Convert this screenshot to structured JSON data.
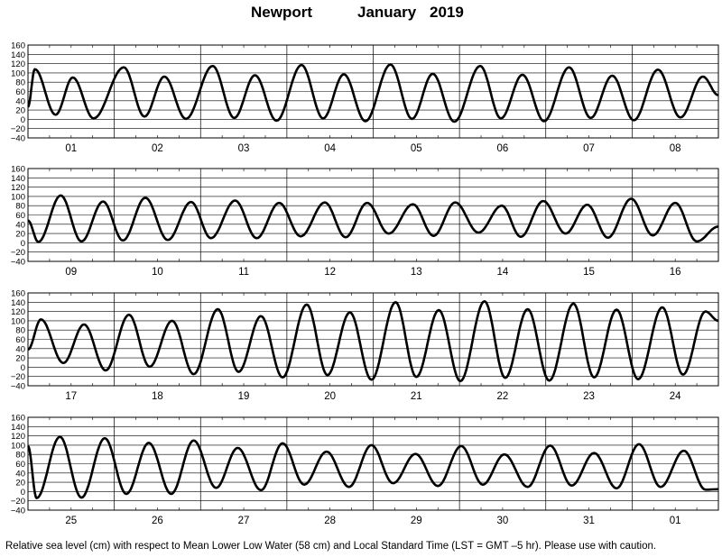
{
  "header": {
    "station": "Newport",
    "month": "January",
    "year": "2019"
  },
  "caption": "Relative sea level (cm) with respect to Mean Lower Low Water (58 cm) and Local Standard Time (LST = GMT –5 hr). Please use with caution.",
  "chart_data": {
    "type": "line",
    "title": "Newport January 2019",
    "xlabel": "",
    "ylabel": "",
    "ylim": [
      -40,
      160
    ],
    "yticks": [
      -40,
      -20,
      0,
      20,
      40,
      60,
      80,
      100,
      120,
      140,
      160
    ],
    "grid": true,
    "line_color": "#000000",
    "panels": [
      {
        "days": [
          "01",
          "02",
          "03",
          "04",
          "05",
          "06",
          "07",
          "08"
        ],
        "extrema": [
          [
            0.0,
            27
          ],
          [
            0.08,
            108
          ],
          [
            0.32,
            10
          ],
          [
            0.52,
            90
          ],
          [
            0.76,
            2
          ],
          [
            1.11,
            112
          ],
          [
            1.35,
            6
          ],
          [
            1.58,
            92
          ],
          [
            1.83,
            1
          ],
          [
            2.14,
            115
          ],
          [
            2.39,
            3
          ],
          [
            2.63,
            95
          ],
          [
            2.88,
            -3
          ],
          [
            3.17,
            117
          ],
          [
            3.42,
            2
          ],
          [
            3.66,
            97
          ],
          [
            3.91,
            -4
          ],
          [
            4.2,
            118
          ],
          [
            4.45,
            1
          ],
          [
            4.69,
            98
          ],
          [
            4.94,
            -5
          ],
          [
            5.24,
            115
          ],
          [
            5.48,
            2
          ],
          [
            5.73,
            96
          ],
          [
            5.98,
            -4
          ],
          [
            6.27,
            112
          ],
          [
            6.52,
            3
          ],
          [
            6.77,
            94
          ],
          [
            7.02,
            -2
          ],
          [
            7.3,
            107
          ],
          [
            7.56,
            4
          ],
          [
            7.82,
            92
          ],
          [
            8.0,
            52
          ]
        ]
      },
      {
        "days": [
          "09",
          "10",
          "11",
          "12",
          "13",
          "14",
          "15",
          "16"
        ],
        "extrema": [
          [
            0.0,
            48
          ],
          [
            0.12,
            2
          ],
          [
            0.38,
            102
          ],
          [
            0.62,
            3
          ],
          [
            0.87,
            89
          ],
          [
            1.1,
            5
          ],
          [
            1.36,
            97
          ],
          [
            1.62,
            6
          ],
          [
            1.89,
            88
          ],
          [
            2.12,
            10
          ],
          [
            2.4,
            91
          ],
          [
            2.65,
            10
          ],
          [
            2.91,
            86
          ],
          [
            3.16,
            14
          ],
          [
            3.44,
            87
          ],
          [
            3.68,
            12
          ],
          [
            3.93,
            86
          ],
          [
            4.18,
            20
          ],
          [
            4.46,
            83
          ],
          [
            4.7,
            15
          ],
          [
            4.95,
            87
          ],
          [
            5.22,
            22
          ],
          [
            5.49,
            80
          ],
          [
            5.71,
            13
          ],
          [
            5.97,
            90
          ],
          [
            6.23,
            20
          ],
          [
            6.48,
            82
          ],
          [
            6.72,
            11
          ],
          [
            6.99,
            95
          ],
          [
            7.24,
            16
          ],
          [
            7.5,
            86
          ],
          [
            7.75,
            3
          ],
          [
            8.0,
            35
          ]
        ]
      },
      {
        "days": [
          "17",
          "18",
          "19",
          "20",
          "21",
          "22",
          "23",
          "24"
        ],
        "extrema": [
          [
            0.0,
            38
          ],
          [
            0.15,
            103
          ],
          [
            0.41,
            9
          ],
          [
            0.65,
            92
          ],
          [
            0.9,
            -7
          ],
          [
            1.17,
            113
          ],
          [
            1.41,
            1
          ],
          [
            1.67,
            100
          ],
          [
            1.92,
            -15
          ],
          [
            2.2,
            125
          ],
          [
            2.44,
            -10
          ],
          [
            2.7,
            110
          ],
          [
            2.95,
            -22
          ],
          [
            3.23,
            135
          ],
          [
            3.47,
            -17
          ],
          [
            3.73,
            118
          ],
          [
            3.98,
            -27
          ],
          [
            4.26,
            140
          ],
          [
            4.5,
            -21
          ],
          [
            4.76,
            123
          ],
          [
            5.01,
            -30
          ],
          [
            5.29,
            142
          ],
          [
            5.53,
            -23
          ],
          [
            5.79,
            125
          ],
          [
            6.04,
            -29
          ],
          [
            6.32,
            137
          ],
          [
            6.56,
            -22
          ],
          [
            6.82,
            124
          ],
          [
            7.07,
            -26
          ],
          [
            7.35,
            129
          ],
          [
            7.59,
            -16
          ],
          [
            7.85,
            120
          ],
          [
            8.0,
            100
          ]
        ]
      },
      {
        "days": [
          "25",
          "26",
          "27",
          "28",
          "29",
          "30",
          "31",
          "01"
        ],
        "extrema": [
          [
            0.0,
            98
          ],
          [
            0.1,
            -14
          ],
          [
            0.37,
            118
          ],
          [
            0.62,
            -13
          ],
          [
            0.89,
            115
          ],
          [
            1.14,
            -5
          ],
          [
            1.4,
            105
          ],
          [
            1.66,
            -5
          ],
          [
            1.92,
            110
          ],
          [
            2.18,
            8
          ],
          [
            2.43,
            94
          ],
          [
            2.7,
            3
          ],
          [
            2.95,
            104
          ],
          [
            3.2,
            15
          ],
          [
            3.46,
            86
          ],
          [
            3.72,
            10
          ],
          [
            3.98,
            100
          ],
          [
            4.23,
            18
          ],
          [
            4.49,
            81
          ],
          [
            4.75,
            12
          ],
          [
            5.02,
            98
          ],
          [
            5.27,
            15
          ],
          [
            5.52,
            80
          ],
          [
            5.79,
            10
          ],
          [
            6.05,
            99
          ],
          [
            6.3,
            13
          ],
          [
            6.56,
            83
          ],
          [
            6.82,
            7
          ],
          [
            7.08,
            102
          ],
          [
            7.33,
            10
          ],
          [
            7.6,
            88
          ],
          [
            7.85,
            4
          ],
          [
            8.0,
            5
          ]
        ]
      }
    ]
  }
}
